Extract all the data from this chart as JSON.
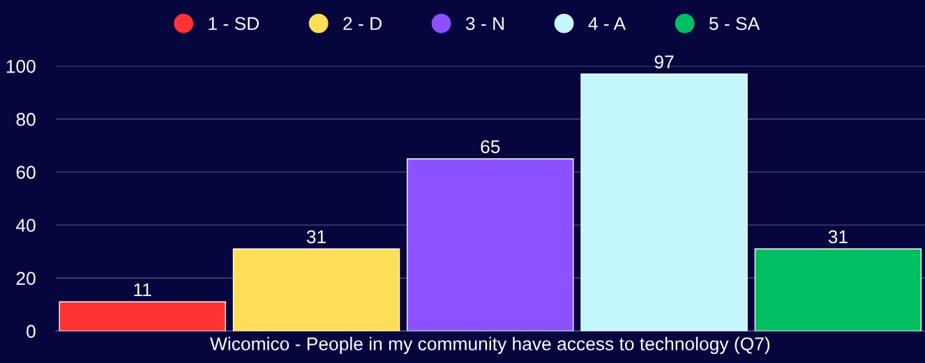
{
  "chart_data": {
    "type": "bar",
    "xlabel": "Wicomico - People in my community have access to technology (Q7)",
    "categories": [
      null
    ],
    "series": [
      {
        "name": "1 - SD",
        "color": "#ff3333",
        "values": [
          11
        ]
      },
      {
        "name": "2 - D",
        "color": "#ffde59",
        "values": [
          31
        ]
      },
      {
        "name": "3 - N",
        "color": "#8c52ff",
        "values": [
          65
        ]
      },
      {
        "name": "4 - A",
        "color": "#c4f7ff",
        "values": [
          97
        ]
      },
      {
        "name": "5 - SA",
        "color": "#00bf63",
        "values": [
          31
        ]
      }
    ],
    "ylim": [
      0,
      100
    ],
    "yticks": [
      0,
      20,
      40,
      60,
      80,
      100
    ],
    "grid": "y",
    "legend": "top",
    "data_labels": true
  }
}
